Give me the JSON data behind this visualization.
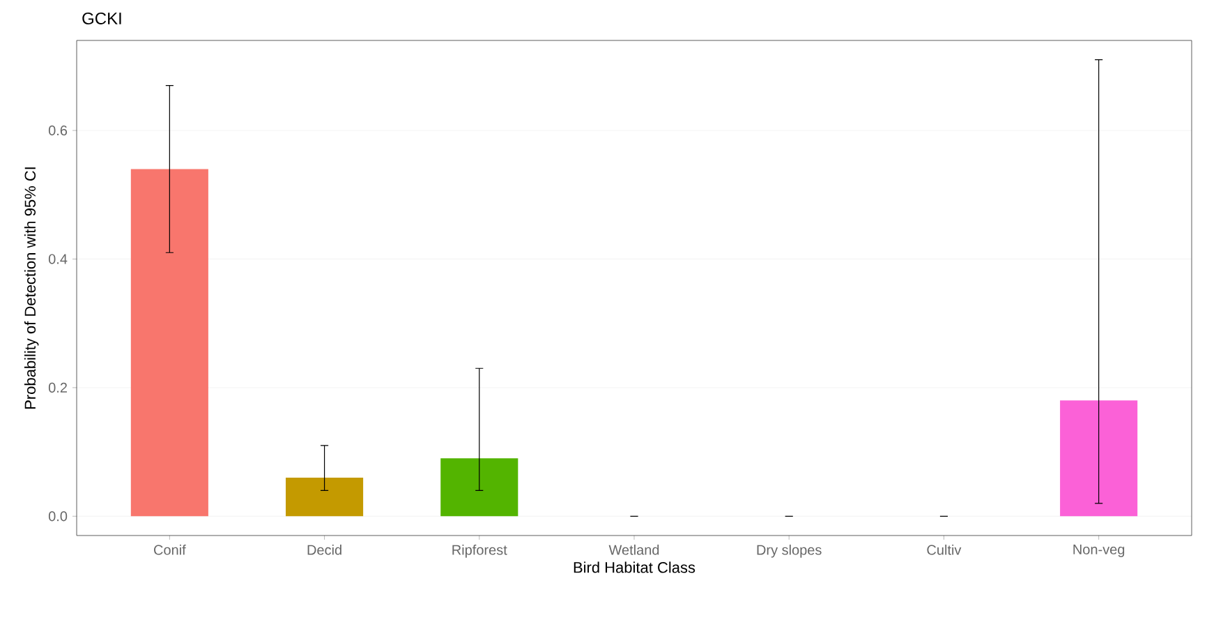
{
  "chart_data": {
    "type": "bar",
    "title": "GCKI",
    "xlabel": "Bird Habitat Class",
    "ylabel": "Probability of Detection with 95% CI",
    "categories": [
      "Conif",
      "Decid",
      "Ripforest",
      "Wetland",
      "Dry slopes",
      "Cultiv",
      "Non-veg"
    ],
    "values": [
      0.54,
      0.06,
      0.09,
      0,
      0,
      0,
      0.18
    ],
    "colors": [
      "#f8766d",
      "#c49a00",
      "#53b400",
      "#00c094",
      "#00b6eb",
      "#a58aff",
      "#fb61d7"
    ],
    "errors": [
      [
        0.41,
        0.67
      ],
      [
        0.04,
        0.11
      ],
      [
        0.04,
        0.23
      ],
      [
        0,
        0
      ],
      [
        0,
        0
      ],
      [
        0,
        0
      ],
      [
        0.02,
        0.71
      ]
    ],
    "ylim": [
      -0.03,
      0.74
    ],
    "yticks": [
      {
        "value": 0,
        "label": "0.0"
      },
      {
        "value": 0.2,
        "label": "0.2"
      },
      {
        "value": 0.4,
        "label": "0.4"
      },
      {
        "value": 0.6,
        "label": "0.6"
      }
    ],
    "grid": "y"
  }
}
